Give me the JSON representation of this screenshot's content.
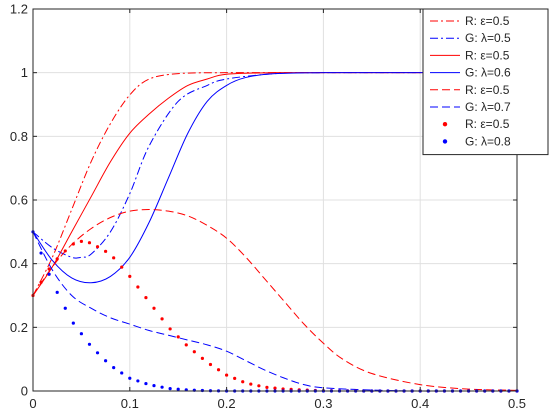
{
  "chart_data": {
    "type": "line",
    "title": "",
    "xlabel": "",
    "ylabel": "",
    "xlim": [
      0,
      0.5
    ],
    "ylim": [
      0,
      1.2
    ],
    "xticks": [
      0,
      0.1,
      0.2,
      0.3,
      0.4,
      0.5
    ],
    "yticks": [
      0,
      0.2,
      0.4,
      0.6,
      0.8,
      1,
      1.2
    ],
    "xtick_labels": [
      "0",
      "0.1",
      "0.2",
      "0.3",
      "0.4",
      "0.5"
    ],
    "ytick_labels": [
      "0",
      "0.2",
      "0.4",
      "0.6",
      "0.8",
      "1",
      "1.2"
    ],
    "grid": true,
    "legend_placement": "outside-top-right",
    "colors": {
      "red": "#ff0000",
      "blue": "#0000ff"
    },
    "series": [
      {
        "name": "R: ε=0.5",
        "color": "#ff0000",
        "style": "dashdot",
        "x": [
          0,
          0.02,
          0.04,
          0.06,
          0.08,
          0.1,
          0.12,
          0.15,
          0.2,
          0.25,
          0.3,
          0.4,
          0.5
        ],
        "y": [
          0.3,
          0.42,
          0.57,
          0.72,
          0.84,
          0.93,
          0.98,
          0.997,
          1,
          1,
          1,
          1,
          1
        ]
      },
      {
        "name": "G: λ=0.5",
        "color": "#0000ff",
        "style": "dashdot",
        "x": [
          0,
          0.02,
          0.04,
          0.05,
          0.06,
          0.08,
          0.1,
          0.12,
          0.15,
          0.18,
          0.2,
          0.25,
          0.3,
          0.4,
          0.5
        ],
        "y": [
          0.5,
          0.45,
          0.42,
          0.42,
          0.43,
          0.5,
          0.62,
          0.77,
          0.91,
          0.96,
          0.98,
          0.997,
          1,
          1,
          1
        ]
      },
      {
        "name": "R: ε=0.5",
        "color": "#ff0000",
        "style": "solid",
        "x": [
          0,
          0.02,
          0.04,
          0.06,
          0.08,
          0.1,
          0.12,
          0.14,
          0.16,
          0.18,
          0.2,
          0.25,
          0.3,
          0.4,
          0.5
        ],
        "y": [
          0.3,
          0.39,
          0.5,
          0.61,
          0.72,
          0.81,
          0.87,
          0.92,
          0.96,
          0.98,
          0.995,
          1,
          1,
          1,
          1
        ]
      },
      {
        "name": "G: λ=0.6",
        "color": "#0000ff",
        "style": "solid",
        "x": [
          0,
          0.02,
          0.04,
          0.06,
          0.08,
          0.1,
          0.12,
          0.14,
          0.16,
          0.18,
          0.2,
          0.22,
          0.25,
          0.3,
          0.4,
          0.5
        ],
        "y": [
          0.5,
          0.41,
          0.355,
          0.34,
          0.36,
          0.42,
          0.53,
          0.67,
          0.81,
          0.91,
          0.96,
          0.985,
          0.997,
          1,
          1,
          1
        ]
      },
      {
        "name": "R: ε=0.5",
        "color": "#ff0000",
        "style": "dashed",
        "x": [
          0,
          0.02,
          0.04,
          0.06,
          0.08,
          0.1,
          0.12,
          0.14,
          0.16,
          0.18,
          0.2,
          0.22,
          0.24,
          0.26,
          0.28,
          0.3,
          0.32,
          0.35,
          0.4,
          0.45,
          0.5
        ],
        "y": [
          0.3,
          0.39,
          0.46,
          0.51,
          0.545,
          0.565,
          0.57,
          0.565,
          0.55,
          0.52,
          0.48,
          0.42,
          0.35,
          0.28,
          0.21,
          0.15,
          0.1,
          0.055,
          0.02,
          0.006,
          0.002
        ]
      },
      {
        "name": "G: λ=0.7",
        "color": "#0000ff",
        "style": "dashed",
        "x": [
          0,
          0.02,
          0.04,
          0.06,
          0.08,
          0.1,
          0.12,
          0.14,
          0.16,
          0.18,
          0.2,
          0.22,
          0.24,
          0.26,
          0.28,
          0.3,
          0.35,
          0.4,
          0.45,
          0.5
        ],
        "y": [
          0.5,
          0.38,
          0.3,
          0.26,
          0.23,
          0.21,
          0.19,
          0.175,
          0.16,
          0.145,
          0.125,
          0.095,
          0.065,
          0.04,
          0.02,
          0.01,
          0.003,
          0,
          0,
          0
        ]
      },
      {
        "name": "R: ε=0.5",
        "color": "#ff0000",
        "style": "dots",
        "x": [
          0,
          0.02,
          0.04,
          0.05,
          0.06,
          0.08,
          0.1,
          0.12,
          0.14,
          0.16,
          0.18,
          0.2,
          0.22,
          0.24,
          0.26,
          0.28,
          0.3,
          0.35,
          0.4,
          0.45,
          0.5
        ],
        "y": [
          0.3,
          0.4,
          0.46,
          0.47,
          0.465,
          0.43,
          0.36,
          0.28,
          0.2,
          0.14,
          0.09,
          0.05,
          0.025,
          0.012,
          0.006,
          0.003,
          0.001,
          0,
          0,
          0,
          0
        ]
      },
      {
        "name": "G: λ=0.8",
        "color": "#0000ff",
        "style": "dots",
        "x": [
          0,
          0.02,
          0.04,
          0.06,
          0.08,
          0.1,
          0.12,
          0.14,
          0.16,
          0.18,
          0.2,
          0.25,
          0.3,
          0.4,
          0.5
        ],
        "y": [
          0.5,
          0.34,
          0.22,
          0.14,
          0.08,
          0.04,
          0.02,
          0.008,
          0.003,
          0.001,
          0,
          0,
          0,
          0,
          0
        ]
      }
    ]
  }
}
